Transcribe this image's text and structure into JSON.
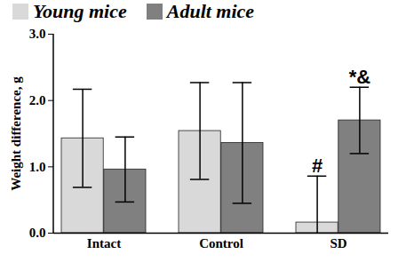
{
  "chart_data": {
    "type": "bar",
    "y_label": "Weight difference, g",
    "categories": [
      "Intact",
      "Control",
      "SD"
    ],
    "series": [
      {
        "name": "Young mice",
        "color": "#d9d9d9",
        "values": [
          1.43,
          1.54,
          0.16
        ],
        "errors": [
          0.74,
          0.73,
          0.7
        ]
      },
      {
        "name": "Adult mice",
        "color": "#808080",
        "values": [
          0.96,
          1.36,
          1.7
        ],
        "errors": [
          0.49,
          0.91,
          0.5
        ]
      }
    ],
    "ylim": [
      0,
      3
    ],
    "yticks": [
      0,
      1,
      2,
      3
    ],
    "legend": "top",
    "annotations": [
      {
        "text": "#",
        "category": "SD",
        "series": "Young mice"
      },
      {
        "text": "*&",
        "category": "SD",
        "series": "Adult mice"
      }
    ]
  }
}
